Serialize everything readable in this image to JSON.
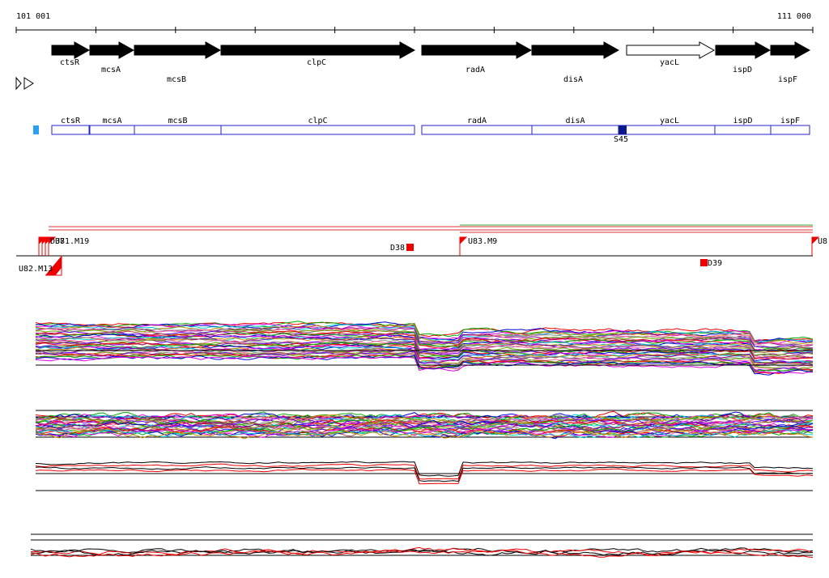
{
  "ruler": {
    "start": "101 001",
    "end": "111 000"
  },
  "genes": [
    "ctsR",
    "mcsA",
    "mcsB",
    "clpC",
    "radA",
    "disA",
    "yacL",
    "ispD",
    "ispF"
  ],
  "segments": [
    "ctsR",
    "mcsA",
    "mcsB",
    "clpC",
    "radA",
    "disA",
    "yacL",
    "ispD",
    "ispF"
  ],
  "segment_marker": "S45",
  "markers": [
    "U82.M13",
    "D37",
    "U81.M19",
    "D38",
    "U83.M9",
    "D39",
    "U8"
  ]
}
